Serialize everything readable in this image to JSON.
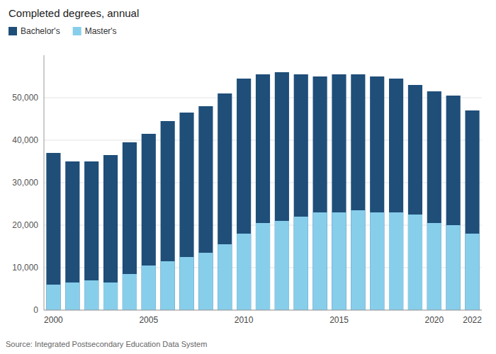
{
  "chart_data": {
    "type": "bar",
    "title": "Completed degrees, annual",
    "categories": [
      "2000",
      null,
      null,
      null,
      null,
      "2005",
      null,
      null,
      null,
      null,
      "2010",
      null,
      null,
      null,
      null,
      "2015",
      null,
      null,
      null,
      null,
      "2020",
      null,
      "2022"
    ],
    "series": [
      {
        "name": "Bachelor's",
        "color": "#1f4e79",
        "values": [
          37000,
          35000,
          35000,
          36500,
          39500,
          41500,
          44500,
          46500,
          48000,
          51000,
          54500,
          55500,
          56000,
          55500,
          55000,
          55500,
          55500,
          55000,
          54500,
          53000,
          51500,
          50500,
          47000
        ]
      },
      {
        "name": "Master's",
        "color": "#87ceeb",
        "values": [
          6000,
          6500,
          7000,
          6500,
          8500,
          10500,
          11500,
          12500,
          13500,
          15500,
          18000,
          20500,
          21000,
          22000,
          23000,
          23000,
          23500,
          23000,
          23000,
          22500,
          20500,
          20000,
          18000
        ]
      }
    ],
    "ylim": [
      0,
      60000
    ],
    "yticks": [
      0,
      {
        "value": 10000,
        "label": "10,000"
      },
      {
        "value": 20000,
        "label": "20,000"
      },
      {
        "value": 30000,
        "label": "30,000"
      },
      {
        "value": 40000,
        "label": "40,000"
      },
      {
        "value": 50000,
        "label": "50,000"
      }
    ],
    "grid": true,
    "legend": "top-left",
    "annotations": [
      "Source: Integrated Postsecondary Education Data System"
    ]
  }
}
